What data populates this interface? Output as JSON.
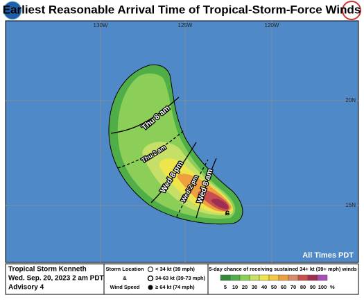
{
  "header": {
    "title": "Earliest Reasonable Arrival Time of Tropical-Storm-Force Winds"
  },
  "map": {
    "lon_labels": [
      "130W",
      "125W",
      "120W"
    ],
    "lat_labels": [
      "20N",
      "15N"
    ],
    "contours": [
      "Thu 8 am",
      "Thu 2 am",
      "Wed 8 pm",
      "Wed 2 pm",
      "Wed 8 am"
    ],
    "note": "All Times PDT"
  },
  "footer": {
    "storm_name": "Tropical Storm Kenneth",
    "issued": "Wed. Sep. 20, 2023  2 am PDT",
    "advisory": "Advisory 4",
    "key": {
      "title_lines": [
        "Storm Location",
        "&",
        "Wind Speed"
      ],
      "items": [
        "< 34 kt (39 mph)",
        "34-63 kt (39-73 mph)",
        "≥ 64 kt (74 mph)"
      ]
    },
    "scale": {
      "title": "5-day chance of receiving sustained 34+ kt (39+ mph) winds",
      "labels": [
        5,
        10,
        20,
        30,
        40,
        50,
        60,
        70,
        80,
        90,
        100
      ],
      "unit": "%",
      "colors": [
        "#2f8a3a",
        "#4fae48",
        "#8ccf58",
        "#c6df66",
        "#eee44c",
        "#f3c944",
        "#ee9f3e",
        "#d98a6a",
        "#c84f4f",
        "#9e2f52",
        "#a54fb5"
      ]
    }
  }
}
